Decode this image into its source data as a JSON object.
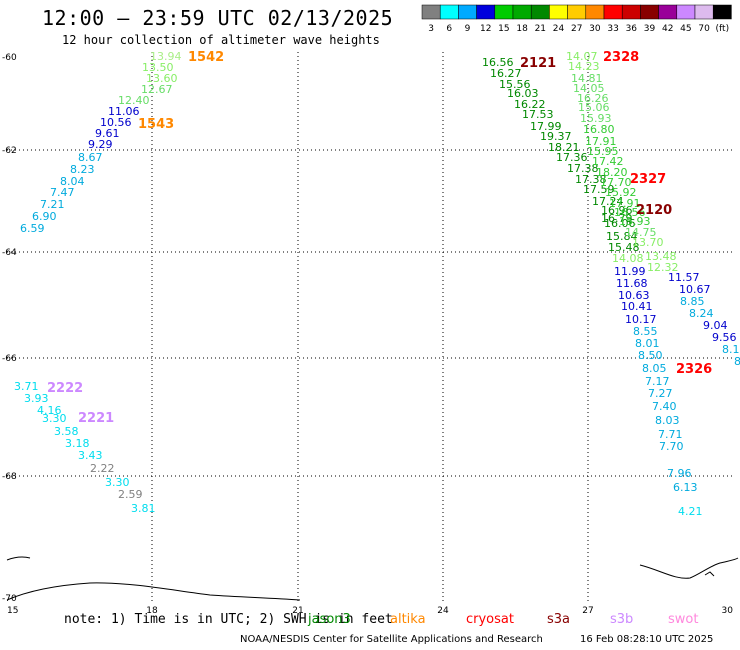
{
  "title": "12:00 – 23:59 UTC 02/13/2025",
  "subtitle": "12 hour collection of altimeter wave heights",
  "colorbar": {
    "colors": [
      "#808080",
      "#00ffff",
      "#00aaff",
      "#0000dd",
      "#00cc00",
      "#00aa00",
      "#008800",
      "#ffff00",
      "#ffcc00",
      "#ff8800",
      "#ff0000",
      "#cc0000",
      "#880000",
      "#990099",
      "#cc88ff",
      "#ddbbee",
      "#000000"
    ],
    "labels": [
      "3",
      "6",
      "9",
      "12",
      "15",
      "18",
      "21",
      "24",
      "27",
      "30",
      "33",
      "36",
      "39",
      "42",
      "45",
      "70",
      "(ft)"
    ]
  },
  "axes": {
    "x_ticks": [
      "15",
      "18",
      "21",
      "24",
      "27",
      "30"
    ],
    "y_ticks": [
      "-60",
      "-62",
      "-64",
      "-66",
      "-68",
      "-70"
    ]
  },
  "note": "note: 1) Time is in UTC; 2) SWH is in feet",
  "legend": [
    {
      "name": "jason3",
      "color": "#008800"
    },
    {
      "name": "altika",
      "color": "#ff8800"
    },
    {
      "name": "cryosat",
      "color": "#ff0000"
    },
    {
      "name": "s3a",
      "color": "#880000"
    },
    {
      "name": "s3b",
      "color": "#cc88ff"
    },
    {
      "name": "swot",
      "color": "#ff88dd"
    }
  ],
  "footer": "NOAA/NESDIS Center for Satellite Applications and Research",
  "footer_time": "16 Feb 08:28:10 UTC 2025",
  "track_labels": [
    {
      "id": "lbl-1542",
      "text": "1542",
      "color": "#ff8800"
    },
    {
      "id": "lbl-1543",
      "text": "1543",
      "color": "#ff8800"
    },
    {
      "id": "lbl-2121",
      "text": "2121",
      "color": "#880000"
    },
    {
      "id": "lbl-2328",
      "text": "2328",
      "color": "#ff0000"
    },
    {
      "id": "lbl-2327",
      "text": "2327",
      "color": "#ff0000"
    },
    {
      "id": "lbl-2120",
      "text": "2120",
      "color": "#880000"
    },
    {
      "id": "lbl-2326",
      "text": "2326",
      "color": "#ff0000"
    },
    {
      "id": "lbl-2222",
      "text": "2222",
      "color": "#cc88ff"
    },
    {
      "id": "lbl-2221",
      "text": "2221",
      "color": "#cc88ff"
    }
  ],
  "wave_values": [
    {
      "v": "13.94",
      "c": "#aaee88"
    },
    {
      "v": "13.50",
      "c": "#88ee66"
    },
    {
      "v": "13.60",
      "c": "#88ee66"
    },
    {
      "v": "12.67",
      "c": "#66dd66"
    },
    {
      "v": "12.40",
      "c": "#66dd66"
    },
    {
      "v": "11.06",
      "c": "#0000cc"
    },
    {
      "v": "10.56",
      "c": "#0000cc"
    },
    {
      "v": "9.61",
      "c": "#0000cc"
    },
    {
      "v": "9.29",
      "c": "#0000cc"
    },
    {
      "v": "8.67",
      "c": "#00aadd"
    },
    {
      "v": "8.23",
      "c": "#00aadd"
    },
    {
      "v": "8.04",
      "c": "#00aadd"
    },
    {
      "v": "7.47",
      "c": "#00aadd"
    },
    {
      "v": "7.21",
      "c": "#00aadd"
    },
    {
      "v": "6.90",
      "c": "#00aadd"
    },
    {
      "v": "6.59",
      "c": "#00aadd"
    },
    {
      "v": "16.56",
      "c": "#008800"
    },
    {
      "v": "16.27",
      "c": "#008800"
    },
    {
      "v": "15.56",
      "c": "#008800"
    },
    {
      "v": "16.03",
      "c": "#008800"
    },
    {
      "v": "16.22",
      "c": "#008800"
    },
    {
      "v": "17.53",
      "c": "#008800"
    },
    {
      "v": "17.99",
      "c": "#008800"
    },
    {
      "v": "19.37",
      "c": "#008800"
    },
    {
      "v": "18.21",
      "c": "#008800"
    },
    {
      "v": "17.36",
      "c": "#008800"
    },
    {
      "v": "17.38",
      "c": "#008800"
    },
    {
      "v": "17.38",
      "c": "#008800"
    },
    {
      "v": "17.59",
      "c": "#008800"
    },
    {
      "v": "17.24",
      "c": "#008800"
    },
    {
      "v": "16.96",
      "c": "#008800"
    },
    {
      "v": "16.79",
      "c": "#008800"
    },
    {
      "v": "16.06",
      "c": "#008800"
    },
    {
      "v": "15.84",
      "c": "#008800"
    },
    {
      "v": "15.48",
      "c": "#008800"
    },
    {
      "v": "14.07",
      "c": "#88ee66"
    },
    {
      "v": "14.23",
      "c": "#88ee66"
    },
    {
      "v": "14.81",
      "c": "#66dd66"
    },
    {
      "v": "14.05",
      "c": "#66dd66"
    },
    {
      "v": "16.26",
      "c": "#66dd66"
    },
    {
      "v": "15.06",
      "c": "#66dd66"
    },
    {
      "v": "15.93",
      "c": "#66dd66"
    },
    {
      "v": "16.80",
      "c": "#33cc33"
    },
    {
      "v": "17.91",
      "c": "#33cc33"
    },
    {
      "v": "15.95",
      "c": "#33cc33"
    },
    {
      "v": "17.42",
      "c": "#33cc33"
    },
    {
      "v": "18.20",
      "c": "#33cc33"
    },
    {
      "v": "17.70",
      "c": "#33cc33"
    },
    {
      "v": "15.92",
      "c": "#33cc33"
    },
    {
      "v": "17.91",
      "c": "#33cc33"
    },
    {
      "v": "16.56",
      "c": "#33cc33"
    },
    {
      "v": "15.93",
      "c": "#33cc33"
    },
    {
      "v": "14.75",
      "c": "#66dd66"
    },
    {
      "v": "13.70",
      "c": "#88ee66"
    },
    {
      "v": "14.08",
      "c": "#88ee66"
    },
    {
      "v": "13.48",
      "c": "#88ee66"
    },
    {
      "v": "12.32",
      "c": "#88ee66"
    },
    {
      "v": "11.99",
      "c": "#0000cc"
    },
    {
      "v": "11.68",
      "c": "#0000cc"
    },
    {
      "v": "10.63",
      "c": "#0000cc"
    },
    {
      "v": "10.41",
      "c": "#0000cc"
    },
    {
      "v": "10.17",
      "c": "#0000cc"
    },
    {
      "v": "8.55",
      "c": "#00aadd"
    },
    {
      "v": "8.01",
      "c": "#00aadd"
    },
    {
      "v": "8.50",
      "c": "#00aadd"
    },
    {
      "v": "8.05",
      "c": "#00aadd"
    },
    {
      "v": "11.57",
      "c": "#0000cc"
    },
    {
      "v": "10.67",
      "c": "#0000cc"
    },
    {
      "v": "8.85",
      "c": "#00aadd"
    },
    {
      "v": "8.24",
      "c": "#00aadd"
    },
    {
      "v": "9.04",
      "c": "#0000cc"
    },
    {
      "v": "9.56",
      "c": "#0000cc"
    },
    {
      "v": "8.1",
      "c": "#00aadd"
    },
    {
      "v": "8",
      "c": "#00aadd"
    },
    {
      "v": "7.17",
      "c": "#00aadd"
    },
    {
      "v": "7.27",
      "c": "#00aadd"
    },
    {
      "v": "7.40",
      "c": "#00aadd"
    },
    {
      "v": "8.03",
      "c": "#00aadd"
    },
    {
      "v": "7.71",
      "c": "#00aadd"
    },
    {
      "v": "7.70",
      "c": "#00aadd"
    },
    {
      "v": "7.96",
      "c": "#00aadd"
    },
    {
      "v": "6.13",
      "c": "#00aadd"
    },
    {
      "v": "4.21",
      "c": "#00ddee"
    },
    {
      "v": "3.71",
      "c": "#00ddee"
    },
    {
      "v": "3.93",
      "c": "#00ddee"
    },
    {
      "v": "4.16",
      "c": "#00ddee"
    },
    {
      "v": "3.30",
      "c": "#00ddee"
    },
    {
      "v": "3.58",
      "c": "#00ddee"
    },
    {
      "v": "3.18",
      "c": "#00ddee"
    },
    {
      "v": "3.43",
      "c": "#00ddee"
    },
    {
      "v": "2.22",
      "c": "#808080"
    },
    {
      "v": "3.30",
      "c": "#00ddee"
    },
    {
      "v": "2.59",
      "c": "#808080"
    },
    {
      "v": "3.81",
      "c": "#00ddee"
    }
  ]
}
